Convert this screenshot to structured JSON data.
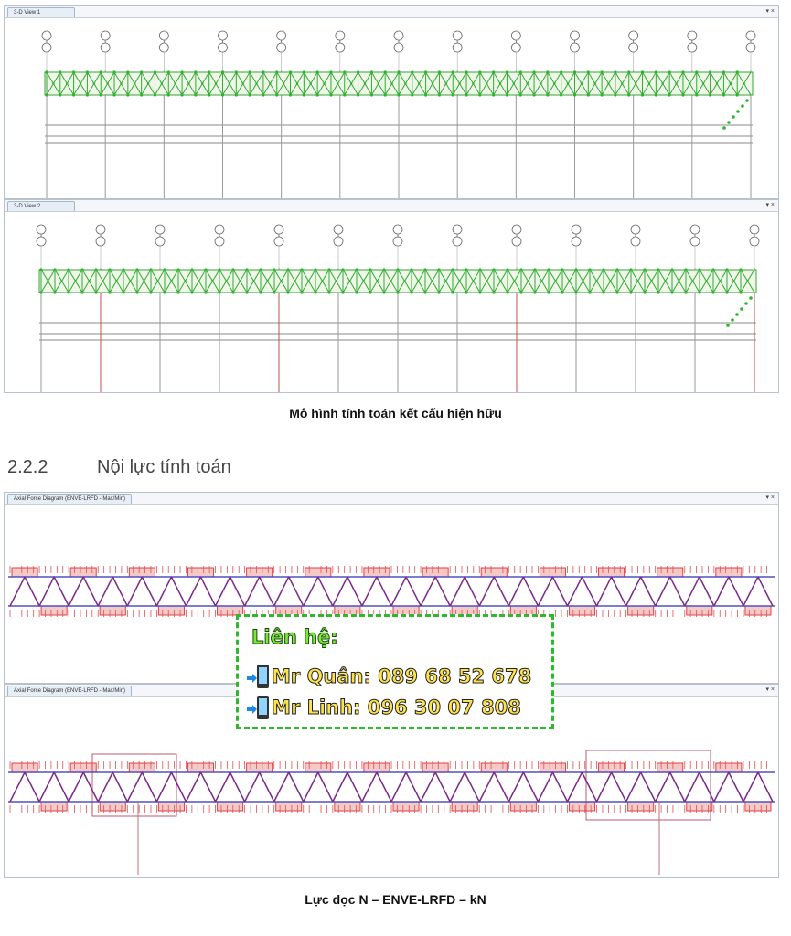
{
  "panels": [
    {
      "tab": "3-D View 1"
    },
    {
      "tab": "3-D View 2"
    },
    {
      "tab": "Axial Force Diagram (ENVE-LRFD - Max/Min)"
    },
    {
      "tab": "Axial Force Diagram (ENVE-LRFD - Max/Min)"
    }
  ],
  "window_controls": "▾ ×",
  "captions": {
    "model": "Mô hình tính toán kết cấu hiện hữu",
    "axial": "Lực dọc N – ENVE-LRFD – kN"
  },
  "section": {
    "number": "2.2.2",
    "title": "Nội lực tính toán"
  },
  "contact": {
    "title": "Liên hệ:",
    "lines": [
      "Mr Quân: 089 68 52 678",
      "Mr Linh: 096 30 07 808"
    ]
  }
}
